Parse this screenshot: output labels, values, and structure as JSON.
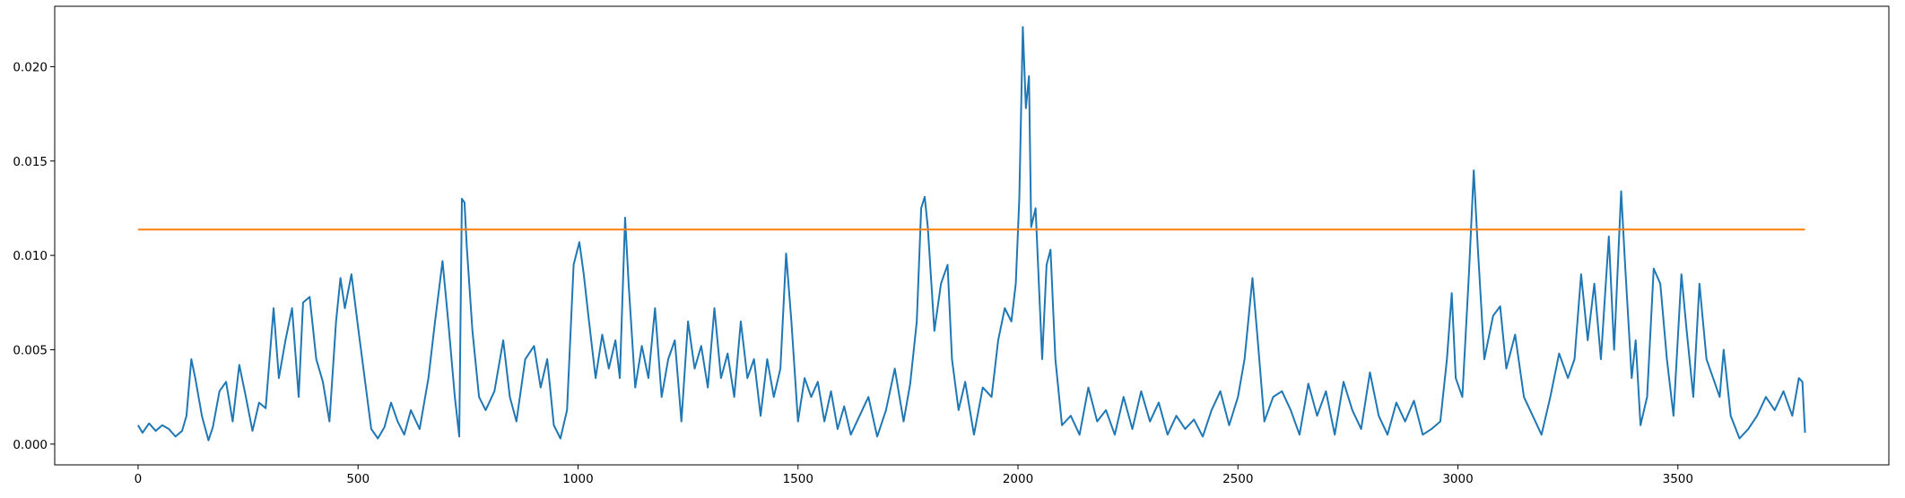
{
  "chart_data": {
    "type": "line",
    "xlim": [
      -189.5,
      3979.5
    ],
    "ylim": [
      -0.0011,
      0.0232
    ],
    "xticks": [
      0,
      500,
      1000,
      1500,
      2000,
      2500,
      3000,
      3500
    ],
    "yticks": [
      {
        "value": 0,
        "label": "0.000"
      },
      {
        "value": 0.005,
        "label": "0.005"
      },
      {
        "value": 0.01,
        "label": "0.010"
      },
      {
        "value": 0.015,
        "label": "0.015"
      },
      {
        "value": 0.02,
        "label": "0.020"
      }
    ],
    "series": [
      {
        "color": "#1f77b4",
        "x": [
          0,
          10,
          25,
          40,
          55,
          70,
          85,
          100,
          110,
          121,
          130,
          145,
          160,
          170,
          185,
          200,
          215,
          230,
          245,
          260,
          275,
          290,
          308,
          320,
          335,
          350,
          365,
          375,
          390,
          405,
          420,
          435,
          450,
          460,
          470,
          485,
          500,
          515,
          530,
          545,
          560,
          575,
          590,
          605,
          620,
          640,
          660,
          675,
          692,
          705,
          720,
          730,
          736,
          742,
          747,
          760,
          775,
          790,
          810,
          830,
          845,
          860,
          880,
          900,
          915,
          930,
          945,
          960,
          975,
          990,
          1003,
          1013,
          1025,
          1040,
          1055,
          1070,
          1085,
          1095,
          1107,
          1115,
          1130,
          1145,
          1160,
          1175,
          1190,
          1205,
          1220,
          1235,
          1250,
          1265,
          1280,
          1295,
          1310,
          1325,
          1340,
          1355,
          1370,
          1385,
          1400,
          1415,
          1430,
          1445,
          1460,
          1473,
          1485,
          1500,
          1515,
          1530,
          1545,
          1560,
          1575,
          1590,
          1605,
          1620,
          1640,
          1660,
          1680,
          1700,
          1720,
          1740,
          1755,
          1770,
          1780,
          1788,
          1795,
          1810,
          1825,
          1840,
          1850,
          1865,
          1880,
          1900,
          1920,
          1940,
          1955,
          1970,
          1985,
          1995,
          2003,
          2011,
          2018,
          2025,
          2030,
          2040,
          2055,
          2065,
          2074,
          2085,
          2100,
          2120,
          2140,
          2160,
          2180,
          2200,
          2220,
          2240,
          2260,
          2280,
          2300,
          2320,
          2340,
          2360,
          2380,
          2400,
          2420,
          2440,
          2460,
          2480,
          2500,
          2515,
          2533,
          2545,
          2560,
          2580,
          2600,
          2620,
          2640,
          2660,
          2680,
          2700,
          2720,
          2740,
          2760,
          2780,
          2800,
          2820,
          2840,
          2860,
          2880,
          2900,
          2920,
          2940,
          2960,
          2975,
          2986,
          2995,
          3010,
          3025,
          3036,
          3045,
          3060,
          3080,
          3096,
          3110,
          3130,
          3150,
          3170,
          3190,
          3210,
          3230,
          3250,
          3265,
          3280,
          3295,
          3310,
          3325,
          3343,
          3355,
          3371,
          3380,
          3395,
          3404,
          3415,
          3430,
          3445,
          3460,
          3475,
          3490,
          3508,
          3520,
          3535,
          3549,
          3565,
          3580,
          3595,
          3604,
          3620,
          3640,
          3660,
          3680,
          3700,
          3720,
          3740,
          3760,
          3775,
          3783,
          3789
        ],
        "values": [
          0.001,
          0.0006,
          0.0011,
          0.0007,
          0.001,
          0.0008,
          0.0004,
          0.0007,
          0.0015,
          0.0045,
          0.0035,
          0.0015,
          0.0002,
          0.0009,
          0.0028,
          0.0033,
          0.0012,
          0.0042,
          0.0025,
          0.0007,
          0.0022,
          0.0019,
          0.0072,
          0.0035,
          0.0055,
          0.0072,
          0.0025,
          0.0075,
          0.0078,
          0.0045,
          0.0033,
          0.0012,
          0.0065,
          0.0088,
          0.0072,
          0.009,
          0.0062,
          0.0035,
          0.0008,
          0.0003,
          0.0009,
          0.0022,
          0.0012,
          0.0005,
          0.0018,
          0.0008,
          0.0035,
          0.0065,
          0.0097,
          0.0065,
          0.0025,
          0.0004,
          0.013,
          0.0128,
          0.0105,
          0.006,
          0.0025,
          0.0018,
          0.0028,
          0.0055,
          0.0025,
          0.0012,
          0.0045,
          0.0052,
          0.003,
          0.0045,
          0.001,
          0.0003,
          0.0018,
          0.0095,
          0.0107,
          0.009,
          0.0065,
          0.0035,
          0.0058,
          0.004,
          0.0055,
          0.0035,
          0.012,
          0.0085,
          0.003,
          0.0052,
          0.0035,
          0.0072,
          0.0025,
          0.0045,
          0.0055,
          0.0012,
          0.0065,
          0.004,
          0.0052,
          0.003,
          0.0072,
          0.0035,
          0.0048,
          0.0025,
          0.0065,
          0.0035,
          0.0045,
          0.0015,
          0.0045,
          0.0025,
          0.004,
          0.0101,
          0.0065,
          0.0012,
          0.0035,
          0.0025,
          0.0033,
          0.0012,
          0.0028,
          0.0008,
          0.002,
          0.0005,
          0.0015,
          0.0025,
          0.0004,
          0.0018,
          0.004,
          0.0012,
          0.0032,
          0.0065,
          0.0125,
          0.0131,
          0.0115,
          0.006,
          0.0085,
          0.0095,
          0.0045,
          0.0018,
          0.0033,
          0.0005,
          0.003,
          0.0025,
          0.0055,
          0.0072,
          0.0065,
          0.0085,
          0.013,
          0.0221,
          0.0178,
          0.0195,
          0.0115,
          0.0125,
          0.0045,
          0.0095,
          0.0103,
          0.0045,
          0.001,
          0.0015,
          0.0005,
          0.003,
          0.0012,
          0.0018,
          0.0005,
          0.0025,
          0.0008,
          0.0028,
          0.0012,
          0.0022,
          0.0005,
          0.0015,
          0.0008,
          0.0013,
          0.0004,
          0.0018,
          0.0028,
          0.001,
          0.0025,
          0.0045,
          0.0088,
          0.0055,
          0.0012,
          0.0025,
          0.0028,
          0.0018,
          0.0005,
          0.0032,
          0.0015,
          0.0028,
          0.0005,
          0.0033,
          0.0018,
          0.0008,
          0.0038,
          0.0015,
          0.0005,
          0.0022,
          0.0012,
          0.0023,
          0.0005,
          0.0008,
          0.0012,
          0.0045,
          0.008,
          0.0035,
          0.0025,
          0.009,
          0.0145,
          0.0105,
          0.0045,
          0.0068,
          0.0073,
          0.004,
          0.0058,
          0.0025,
          0.0015,
          0.0005,
          0.0025,
          0.0048,
          0.0035,
          0.0045,
          0.009,
          0.0055,
          0.0085,
          0.0045,
          0.011,
          0.005,
          0.0134,
          0.0095,
          0.0035,
          0.0055,
          0.001,
          0.0025,
          0.0093,
          0.0085,
          0.0045,
          0.0015,
          0.009,
          0.006,
          0.0025,
          0.0085,
          0.0045,
          0.0035,
          0.0025,
          0.005,
          0.0015,
          0.0003,
          0.0008,
          0.0015,
          0.0025,
          0.0018,
          0.0028,
          0.0015,
          0.0035,
          0.0033,
          0.0006
        ]
      },
      {
        "color": "#ff7f0e",
        "x": [
          0,
          3789
        ],
        "values": [
          0.01137,
          0.01137
        ]
      }
    ]
  }
}
